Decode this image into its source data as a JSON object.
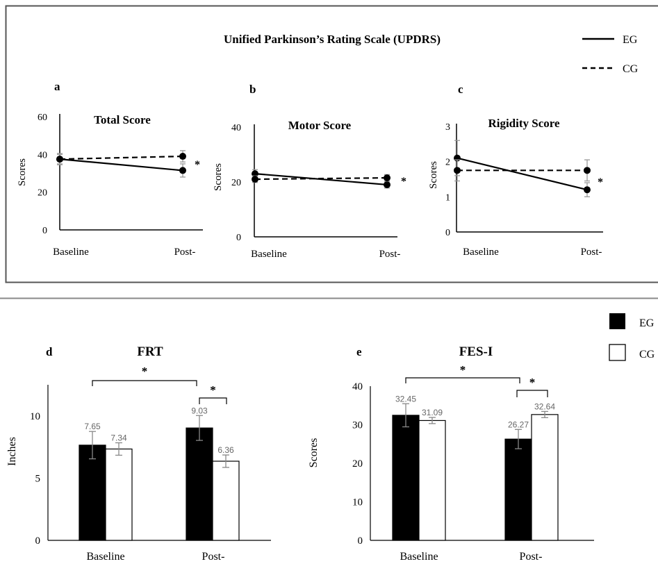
{
  "header": {
    "title": "Unified Parkinson’s Rating Scale (UPDRS)"
  },
  "legend_lines": [
    {
      "label": "EG",
      "style": "solid"
    },
    {
      "label": "CG",
      "style": "dashed"
    }
  ],
  "legend_bars": [
    {
      "label": "EG",
      "fill": "#000000"
    },
    {
      "label": "CG",
      "fill": "#ffffff"
    }
  ],
  "chart_data": [
    {
      "type": "line",
      "panel": "a",
      "title": "Total Score",
      "ylabel": "Scores",
      "categories": [
        "Baseline",
        "Post-"
      ],
      "yticks": [
        "0",
        "20",
        "40",
        "60"
      ],
      "ylim": [
        0,
        60
      ],
      "series": [
        {
          "name": "EG",
          "style": "solid",
          "values": [
            37.5,
            31.5
          ],
          "err": [
            3,
            3.5
          ]
        },
        {
          "name": "CG",
          "style": "dashed",
          "values": [
            37.5,
            39
          ],
          "err": [
            2.5,
            3
          ]
        }
      ],
      "annotation": "*"
    },
    {
      "type": "line",
      "panel": "b",
      "title": "Motor Score",
      "ylabel": "Scores",
      "categories": [
        "Baseline",
        "Post-"
      ],
      "yticks": [
        "0",
        "20",
        "40"
      ],
      "ylim": [
        0,
        40
      ],
      "series": [
        {
          "name": "EG",
          "style": "solid",
          "values": [
            23,
            19
          ],
          "err": [
            1.5,
            1.2
          ]
        },
        {
          "name": "CG",
          "style": "dashed",
          "values": [
            21,
            21.5
          ],
          "err": [
            1.2,
            1.2
          ]
        }
      ],
      "annotation": "*"
    },
    {
      "type": "line",
      "panel": "c",
      "title": "Rigidity Score",
      "ylabel": "Scores",
      "categories": [
        "Baseline",
        "Post-"
      ],
      "yticks": [
        "0",
        "1",
        "2",
        "3"
      ],
      "ylim": [
        0,
        3
      ],
      "series": [
        {
          "name": "EG",
          "style": "solid",
          "values": [
            2.1,
            1.2
          ],
          "err": [
            0.5,
            0.2
          ]
        },
        {
          "name": "CG",
          "style": "dashed",
          "values": [
            1.75,
            1.75
          ],
          "err": [
            0.3,
            0.3
          ]
        }
      ],
      "annotation": "*"
    },
    {
      "type": "bar",
      "panel": "d",
      "title": "FRT",
      "ylabel": "Inches",
      "categories": [
        "Baseline",
        "Post-"
      ],
      "yticks": [
        "0",
        "5",
        "10"
      ],
      "ylim": [
        0,
        12.5
      ],
      "series": [
        {
          "name": "EG",
          "values": [
            7.65,
            9.03
          ],
          "labels": [
            "7.65",
            "9.03"
          ],
          "err": [
            1.1,
            1.0
          ]
        },
        {
          "name": "CG",
          "values": [
            7.34,
            6.36
          ],
          "labels": [
            "7.34",
            "6.36"
          ],
          "err": [
            0.5,
            0.5
          ]
        }
      ],
      "annotations": [
        "*",
        "*"
      ]
    },
    {
      "type": "bar",
      "panel": "e",
      "title": "FES-I",
      "ylabel": "Scores",
      "categories": [
        "Baseline",
        "Post-"
      ],
      "yticks": [
        "0",
        "10",
        "20",
        "30",
        "40"
      ],
      "ylim": [
        0,
        40
      ],
      "series": [
        {
          "name": "EG",
          "values": [
            32.45,
            26.27
          ],
          "labels": [
            "32.45",
            "26.27"
          ],
          "err": [
            3,
            2.5
          ]
        },
        {
          "name": "CG",
          "values": [
            31.09,
            32.64
          ],
          "labels": [
            "31.09",
            "32.64"
          ],
          "err": [
            0.8,
            0.8
          ]
        }
      ],
      "annotations": [
        "*",
        "*"
      ]
    }
  ]
}
